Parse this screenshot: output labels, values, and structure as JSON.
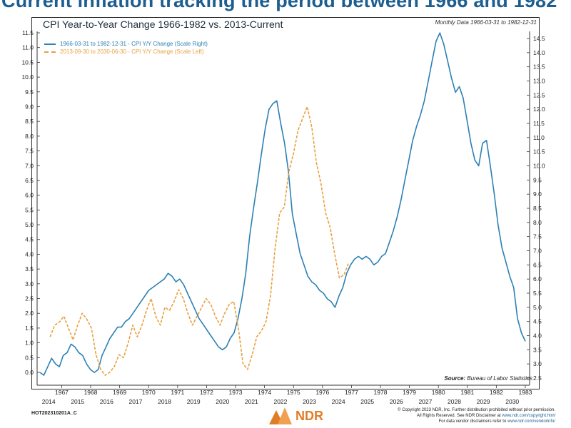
{
  "headline": "Current inflation tracking the period between 1966 and 1982",
  "footer": {
    "code": "HOT202310201A_C",
    "logo_text": "NDR",
    "disclaimer_line1": "© Copyright 2023 NDR, Inc. Further distribution prohibited without prior permission.",
    "disclaimer_line2_text": "All Rights Reserved. See NDR Disclaimer at ",
    "disclaimer_line2_link": "www.ndr.com/copyright.html",
    "disclaimer_line3_text": "For data vendor disclaimers refer to ",
    "disclaimer_line3_link": "www.ndr.com/vendorinfo/"
  },
  "colors": {
    "series1": "#2c80b4",
    "series2": "#e8a040",
    "headline": "#1c5e8f",
    "logo": "#e17d27"
  },
  "chart_data": {
    "type": "line",
    "title": "CPI Year-to-Year Change 1966-1982 vs. 2013-Current",
    "note": "Monthly Data 1966-03-31 to 1982-12-31",
    "source_label": "Source:",
    "source_value": "Bureau of Labor Statistics",
    "legend_placement": "top-left",
    "grid": false,
    "left_axis": {
      "min": 0.0,
      "max": 11.5,
      "ticks": [
        "0.0",
        "0.5",
        "1.0",
        "1.5",
        "2.0",
        "2.5",
        "3.0",
        "3.5",
        "4.0",
        "4.5",
        "5.0",
        "5.5",
        "6.0",
        "6.5",
        "7.0",
        "7.5",
        "8.0",
        "8.5",
        "9.0",
        "9.5",
        "10.0",
        "10.5",
        "11.0",
        "11.5"
      ]
    },
    "right_axis": {
      "min": 2.5,
      "max": 14.5,
      "ticks": [
        "2.5",
        "3.0",
        "3.5",
        "4.0",
        "4.5",
        "5.0",
        "5.5",
        "6.0",
        "6.5",
        "7.0",
        "7.5",
        "8.0",
        "8.5",
        "9.0",
        "9.5",
        "10.0",
        "10.5",
        "11.0",
        "11.5",
        "12.0",
        "12.5",
        "13.0",
        "13.5",
        "14.0",
        "14.5"
      ]
    },
    "top_axis_labels": [
      "1967",
      "1968",
      "1969",
      "1970",
      "1971",
      "1972",
      "1973",
      "1974",
      "1975",
      "1976",
      "1977",
      "1978",
      "1979",
      "1980",
      "1981",
      "1982",
      "1983"
    ],
    "bottom_axis_labels": [
      "2014",
      "2015",
      "2016",
      "2017",
      "2018",
      "2019",
      "2020",
      "2021",
      "2022",
      "2023",
      "2024",
      "2025",
      "2026",
      "2027",
      "2028",
      "2029",
      "2030"
    ],
    "series": [
      {
        "name": "1966-03-31 to 1982-12-31 - CPI Y/Y Change (Scale Right)",
        "axis": "right",
        "x_start": 1966.25,
        "x_end": 1983.0,
        "values": [
          2.7,
          2.6,
          2.9,
          3.2,
          3.0,
          2.9,
          3.3,
          3.4,
          3.7,
          3.6,
          3.4,
          3.3,
          3.0,
          2.8,
          2.7,
          2.8,
          3.3,
          3.6,
          3.9,
          4.1,
          4.3,
          4.3,
          4.5,
          4.6,
          4.8,
          5.0,
          5.2,
          5.4,
          5.6,
          5.7,
          5.8,
          5.9,
          6.0,
          6.2,
          6.1,
          5.9,
          6.0,
          5.8,
          5.5,
          5.2,
          4.9,
          4.6,
          4.4,
          4.2,
          4.0,
          3.8,
          3.6,
          3.5,
          3.6,
          3.9,
          4.1,
          4.6,
          5.3,
          6.2,
          7.5,
          8.5,
          9.4,
          10.4,
          11.3,
          12.0,
          12.2,
          12.3,
          11.5,
          10.8,
          9.8,
          8.3,
          7.6,
          6.9,
          6.5,
          6.1,
          5.9,
          5.8,
          5.6,
          5.5,
          5.3,
          5.2,
          5.0,
          5.4,
          5.7,
          6.2,
          6.5,
          6.7,
          6.8,
          6.7,
          6.8,
          6.7,
          6.5,
          6.6,
          6.8,
          6.9,
          7.3,
          7.7,
          8.2,
          8.8,
          9.5,
          10.2,
          10.9,
          11.4,
          11.8,
          12.3,
          13.0,
          13.7,
          14.4,
          14.7,
          14.3,
          13.7,
          13.1,
          12.6,
          12.8,
          12.4,
          11.6,
          10.8,
          10.2,
          10.0,
          10.8,
          10.9,
          10.0,
          9.0,
          7.9,
          7.1,
          6.6,
          6.1,
          5.7,
          4.6,
          4.1,
          3.8
        ]
      },
      {
        "name": "2013-09-30 to 2030-06-30 - CPI Y/Y Change (Scale Left)",
        "axis": "left",
        "x_start": 1966.6,
        "x_end": 1976.9,
        "values": [
          1.2,
          1.6,
          1.7,
          1.9,
          1.5,
          1.1,
          1.6,
          2.0,
          1.8,
          1.5,
          0.6,
          0.1,
          -0.1,
          0.0,
          0.2,
          0.6,
          0.5,
          1.0,
          1.6,
          1.2,
          1.6,
          2.1,
          2.5,
          1.9,
          1.6,
          2.2,
          2.1,
          2.4,
          2.8,
          2.5,
          2.0,
          1.6,
          1.9,
          2.2,
          2.5,
          2.3,
          1.9,
          1.6,
          2.0,
          2.3,
          2.4,
          1.5,
          0.3,
          0.1,
          0.6,
          1.2,
          1.4,
          1.7,
          2.6,
          4.2,
          5.4,
          5.6,
          6.8,
          7.4,
          8.2,
          8.6,
          9.0,
          8.3,
          7.1,
          6.4,
          5.4,
          4.9,
          4.0,
          3.2,
          3.3,
          3.7
        ]
      }
    ]
  }
}
